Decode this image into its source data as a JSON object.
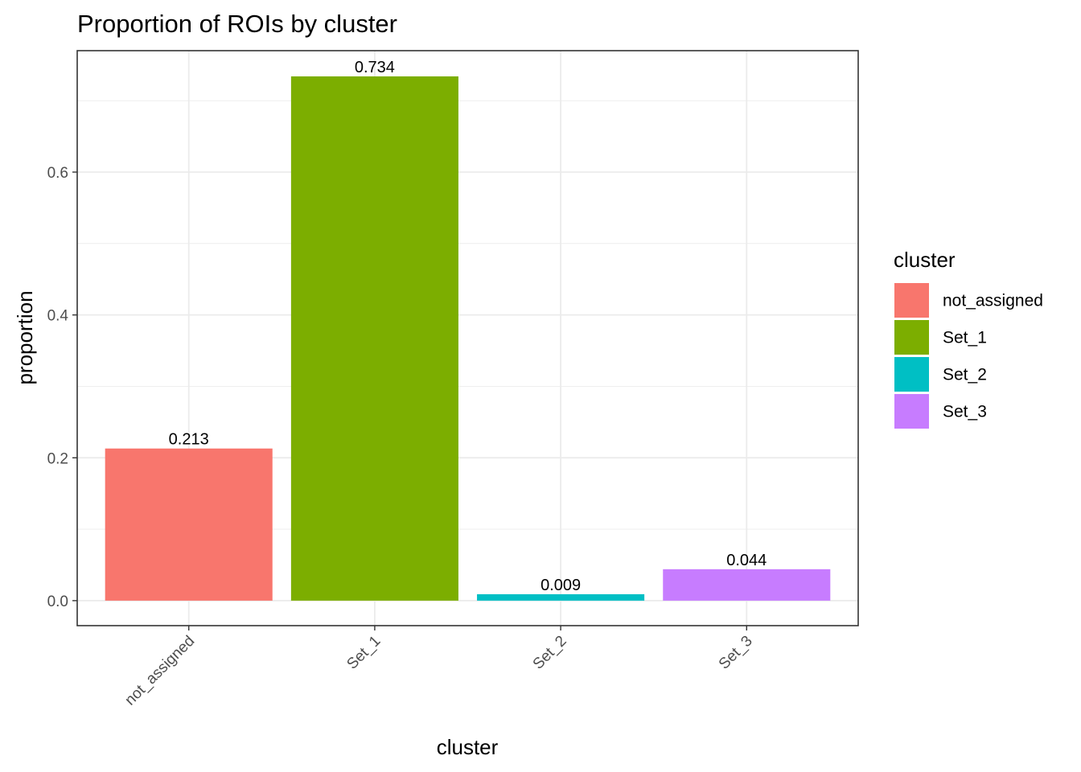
{
  "chart_data": {
    "type": "bar",
    "title": "Proportion of ROIs by cluster",
    "xlabel": "cluster",
    "ylabel": "proportion",
    "categories": [
      "not_assigned",
      "Set_1",
      "Set_2",
      "Set_3"
    ],
    "values": [
      0.213,
      0.734,
      0.009,
      0.044
    ],
    "data_labels": [
      "0.213",
      "0.734",
      "0.009",
      "0.044"
    ],
    "colors": [
      "#F8766D",
      "#7CAE00",
      "#00BFC4",
      "#C77CFF"
    ],
    "yticks": [
      0.0,
      0.2,
      0.4,
      0.6
    ],
    "ytick_labels": [
      "0.0",
      "0.2",
      "0.4",
      "0.6"
    ],
    "ylim": [
      -0.035,
      0.77
    ],
    "grid": true,
    "x_tick_rotation": "45 degrees",
    "legend": {
      "title": "cluster",
      "placement": "right",
      "entries": [
        "not_assigned",
        "Set_1",
        "Set_2",
        "Set_3"
      ]
    }
  }
}
